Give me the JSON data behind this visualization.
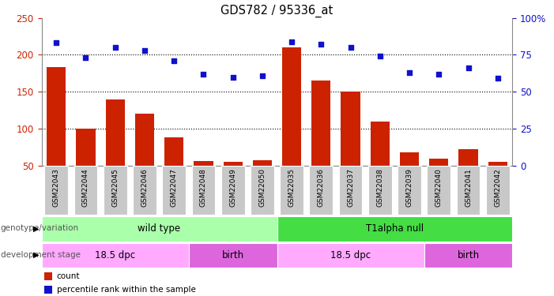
{
  "title": "GDS782 / 95336_at",
  "samples": [
    "GSM22043",
    "GSM22044",
    "GSM22045",
    "GSM22046",
    "GSM22047",
    "GSM22048",
    "GSM22049",
    "GSM22050",
    "GSM22035",
    "GSM22036",
    "GSM22037",
    "GSM22038",
    "GSM22039",
    "GSM22040",
    "GSM22041",
    "GSM22042"
  ],
  "counts": [
    183,
    100,
    140,
    120,
    88,
    56,
    55,
    57,
    210,
    165,
    150,
    110,
    68,
    60,
    72,
    55
  ],
  "percentiles_pct": [
    83,
    73,
    80,
    78,
    71,
    62,
    60,
    61,
    84,
    82,
    80,
    74,
    63,
    62,
    66,
    59
  ],
  "ylim_left": [
    50,
    250
  ],
  "ylim_right": [
    0,
    100
  ],
  "left_ticks": [
    50,
    100,
    150,
    200,
    250
  ],
  "right_ticks": [
    0,
    25,
    50,
    75,
    100
  ],
  "right_tick_labels": [
    "0",
    "25",
    "50",
    "75",
    "100%"
  ],
  "bar_color": "#cc2200",
  "dot_color": "#1111cc",
  "bg_color": "#ffffff",
  "xticklabel_bg": "#c8c8c8",
  "genotype_groups": [
    {
      "label": "wild type",
      "start": 0,
      "end": 8,
      "color": "#aaffaa"
    },
    {
      "label": "T1alpha null",
      "start": 8,
      "end": 16,
      "color": "#44dd44"
    }
  ],
  "stage_groups": [
    {
      "label": "18.5 dpc",
      "start": 0,
      "end": 5,
      "color": "#ffaaff"
    },
    {
      "label": "birth",
      "start": 5,
      "end": 8,
      "color": "#dd66dd"
    },
    {
      "label": "18.5 dpc",
      "start": 8,
      "end": 13,
      "color": "#ffaaff"
    },
    {
      "label": "birth",
      "start": 13,
      "end": 16,
      "color": "#dd66dd"
    }
  ],
  "legend_items": [
    {
      "color": "#cc2200",
      "label": "count"
    },
    {
      "color": "#1111cc",
      "label": "percentile rank within the sample"
    }
  ],
  "left_label_color": "#cc2200",
  "right_label_color": "#1111cc",
  "row_label_color": "#555555"
}
